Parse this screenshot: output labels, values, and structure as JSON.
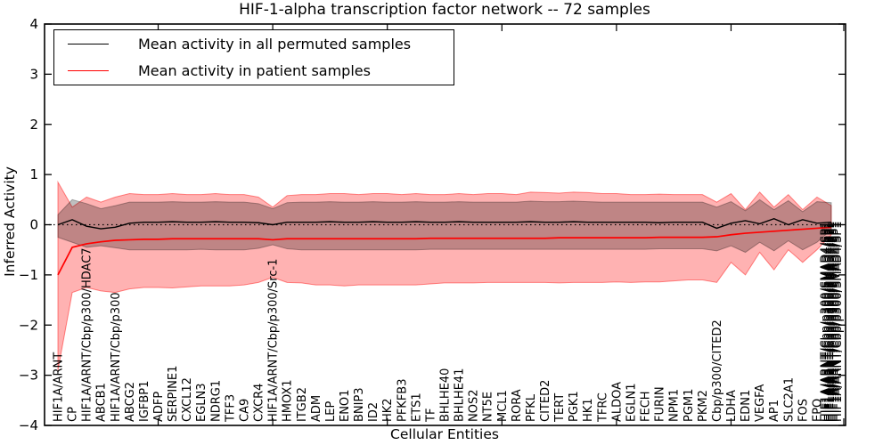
{
  "chart_data": {
    "type": "line",
    "title": "HIF-1-alpha transcription factor network -- 72 samples",
    "xlabel": "Cellular Entities",
    "ylabel": "Inferred Activity",
    "ylim": [
      -4,
      4
    ],
    "yticks": [
      -4,
      -3,
      -2,
      -1,
      0,
      1,
      2,
      3,
      4
    ],
    "grid": false,
    "zero_line": 0,
    "zero_line_style": "dotted",
    "legend_position": "upper left",
    "xtick_indices": [
      7,
      15,
      23,
      31,
      39,
      47,
      55
    ],
    "categories": [
      "HIF1A/ARNT",
      "CP",
      "HIF1A/ARNT/Cbp/p300/HDAC7",
      "ABCB1",
      "HIF1A/ARNT/Cbp/p300",
      "ABCG2",
      "IGFBP1",
      "ADFP",
      "SERPINE1",
      "CXCL12",
      "EGLN3",
      "NDRG1",
      "TFF3",
      "CA9",
      "CXCR4",
      "HIF1A/ARNT/Cbp/p300/Src-1",
      "HMOX1",
      "ITGB2",
      "ADM",
      "LEP",
      "ENO1",
      "BNIP3",
      "ID2",
      "HK2",
      "PFKFB3",
      "ETS1",
      "TF",
      "BHLHE40",
      "BHLHE41",
      "NOS2",
      "NT5E",
      "MCL1",
      "RORA",
      "PFKL",
      "CITED2",
      "TERT",
      "PGK1",
      "HK1",
      "TFRC",
      "ALDOA",
      "EGLN1",
      "FECH",
      "FURIN",
      "NPM1",
      "PGM1",
      "PKM2",
      "Cbp/p300/CITED2",
      "LDHA",
      "EDN1",
      "VEGFA",
      "AP1",
      "SLC2A1",
      "FOS",
      "EPO"
    ],
    "terminal_cluster": {
      "visible_label": "HIF1A/ARNT/Cbp/p300/SMAD4/SP1",
      "overlapped_label_count": 8
    },
    "series": [
      {
        "name": "Mean activity in all permuted samples",
        "color": "#000000",
        "values": [
          0.0,
          0.1,
          -0.03,
          -0.08,
          -0.05,
          0.03,
          0.05,
          0.05,
          0.06,
          0.05,
          0.05,
          0.06,
          0.05,
          0.05,
          0.04,
          0.0,
          0.05,
          0.05,
          0.05,
          0.06,
          0.05,
          0.05,
          0.06,
          0.05,
          0.05,
          0.06,
          0.05,
          0.05,
          0.06,
          0.05,
          0.05,
          0.05,
          0.05,
          0.06,
          0.05,
          0.05,
          0.06,
          0.05,
          0.05,
          0.05,
          0.05,
          0.05,
          0.04,
          0.05,
          0.05,
          0.05,
          -0.07,
          0.03,
          0.08,
          0.02,
          0.12,
          0.0,
          0.1,
          0.03,
          0.05
        ],
        "band_upper": [
          0.2,
          0.5,
          0.42,
          0.32,
          0.38,
          0.45,
          0.45,
          0.45,
          0.46,
          0.45,
          0.45,
          0.46,
          0.45,
          0.45,
          0.42,
          0.32,
          0.44,
          0.45,
          0.45,
          0.46,
          0.45,
          0.45,
          0.46,
          0.45,
          0.45,
          0.46,
          0.45,
          0.45,
          0.46,
          0.45,
          0.45,
          0.45,
          0.45,
          0.47,
          0.46,
          0.46,
          0.47,
          0.46,
          0.45,
          0.45,
          0.45,
          0.45,
          0.45,
          0.45,
          0.45,
          0.45,
          0.35,
          0.46,
          0.28,
          0.5,
          0.3,
          0.48,
          0.26,
          0.46,
          0.44
        ],
        "band_lower": [
          -0.25,
          -0.35,
          -0.45,
          -0.42,
          -0.46,
          -0.5,
          -0.5,
          -0.5,
          -0.5,
          -0.5,
          -0.49,
          -0.5,
          -0.5,
          -0.5,
          -0.47,
          -0.4,
          -0.48,
          -0.5,
          -0.5,
          -0.5,
          -0.5,
          -0.5,
          -0.5,
          -0.5,
          -0.5,
          -0.5,
          -0.49,
          -0.49,
          -0.49,
          -0.49,
          -0.49,
          -0.49,
          -0.49,
          -0.49,
          -0.49,
          -0.49,
          -0.49,
          -0.49,
          -0.49,
          -0.49,
          -0.49,
          -0.49,
          -0.48,
          -0.48,
          -0.48,
          -0.48,
          -0.52,
          -0.42,
          -0.55,
          -0.35,
          -0.52,
          -0.32,
          -0.5,
          -0.35,
          -0.1
        ]
      },
      {
        "name": "Mean activity in patient samples",
        "color": "#ff0000",
        "values": [
          -1.0,
          -0.45,
          -0.38,
          -0.34,
          -0.31,
          -0.3,
          -0.29,
          -0.29,
          -0.28,
          -0.28,
          -0.28,
          -0.28,
          -0.28,
          -0.28,
          -0.28,
          -0.3,
          -0.28,
          -0.28,
          -0.28,
          -0.28,
          -0.28,
          -0.28,
          -0.28,
          -0.28,
          -0.28,
          -0.28,
          -0.27,
          -0.27,
          -0.27,
          -0.27,
          -0.27,
          -0.27,
          -0.27,
          -0.27,
          -0.27,
          -0.26,
          -0.26,
          -0.26,
          -0.26,
          -0.26,
          -0.26,
          -0.26,
          -0.25,
          -0.25,
          -0.25,
          -0.25,
          -0.24,
          -0.2,
          -0.17,
          -0.15,
          -0.13,
          -0.11,
          -0.09,
          -0.07,
          -0.05
        ],
        "band_upper": [
          0.85,
          0.35,
          0.55,
          0.45,
          0.55,
          0.62,
          0.6,
          0.6,
          0.62,
          0.6,
          0.6,
          0.62,
          0.6,
          0.6,
          0.55,
          0.35,
          0.58,
          0.6,
          0.6,
          0.62,
          0.62,
          0.6,
          0.62,
          0.62,
          0.6,
          0.62,
          0.6,
          0.6,
          0.62,
          0.6,
          0.62,
          0.62,
          0.6,
          0.65,
          0.64,
          0.63,
          0.65,
          0.64,
          0.62,
          0.62,
          0.6,
          0.6,
          0.61,
          0.6,
          0.6,
          0.6,
          0.45,
          0.62,
          0.3,
          0.65,
          0.35,
          0.6,
          0.3,
          0.55,
          0.38
        ],
        "band_lower": [
          -2.9,
          -1.35,
          -1.25,
          -1.32,
          -1.35,
          -1.28,
          -1.25,
          -1.25,
          -1.26,
          -1.24,
          -1.22,
          -1.22,
          -1.22,
          -1.2,
          -1.15,
          -1.05,
          -1.15,
          -1.16,
          -1.2,
          -1.2,
          -1.22,
          -1.2,
          -1.2,
          -1.2,
          -1.2,
          -1.2,
          -1.18,
          -1.16,
          -1.16,
          -1.16,
          -1.15,
          -1.15,
          -1.15,
          -1.15,
          -1.15,
          -1.16,
          -1.15,
          -1.15,
          -1.15,
          -1.14,
          -1.15,
          -1.14,
          -1.14,
          -1.12,
          -1.1,
          -1.1,
          -1.15,
          -0.75,
          -1.0,
          -0.55,
          -0.9,
          -0.5,
          -0.75,
          -0.5,
          -0.2
        ]
      }
    ]
  }
}
